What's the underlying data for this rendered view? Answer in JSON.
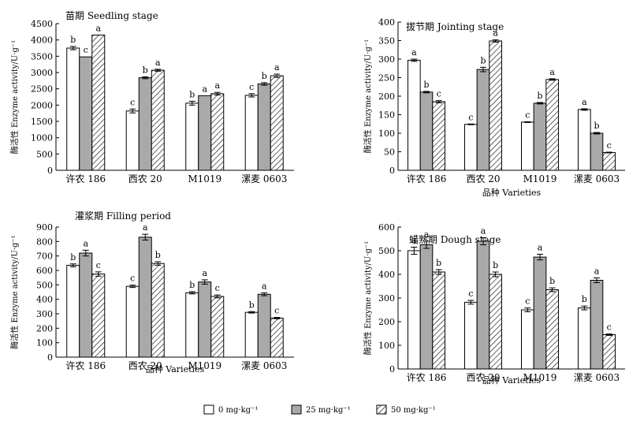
{
  "chart_data": [
    {
      "type": "bar",
      "title": "苗期 Seedling stage",
      "xlabel": "",
      "ylabel": "酶活性 Enzyme activity/U·g⁻¹",
      "ylim": [
        0,
        4500
      ],
      "yticks": [
        0,
        500,
        1000,
        1500,
        2000,
        2500,
        3000,
        3500,
        4000,
        4500
      ],
      "categories": [
        "许农 186",
        "西农 20",
        "M1019",
        "漯麦 0603"
      ],
      "series": [
        {
          "name": "0 mg·kg⁻¹",
          "values": [
            3750,
            1820,
            2060,
            2300
          ],
          "errors": [
            50,
            60,
            60,
            50
          ],
          "letters": [
            "b",
            "c",
            "b",
            "c"
          ]
        },
        {
          "name": "25 mg·kg⁻¹",
          "values": [
            3480,
            2840,
            2290,
            2650
          ],
          "errors": [
            0,
            30,
            0,
            40
          ],
          "letters": [
            "c",
            "b",
            "a",
            "b"
          ]
        },
        {
          "name": "50 mg·kg⁻¹",
          "values": [
            4150,
            3070,
            2350,
            2900
          ],
          "errors": [
            0,
            30,
            40,
            50
          ],
          "letters": [
            "a",
            "a",
            "a",
            "a"
          ]
        }
      ]
    },
    {
      "type": "bar",
      "title": "拔节期 Jointing stage",
      "xlabel": "品种 Varieties",
      "ylabel": "酶活性 Enzyme activity/U·g⁻¹",
      "ylim": [
        0,
        400
      ],
      "yticks": [
        0,
        50,
        100,
        150,
        200,
        250,
        300,
        350,
        400
      ],
      "categories": [
        "许农 186",
        "西农 20",
        "M1019",
        "漯麦 0603"
      ],
      "series": [
        {
          "name": "0 mg·kg⁻¹",
          "values": [
            297,
            124,
            130,
            164
          ],
          "errors": [
            3,
            1,
            1,
            2
          ],
          "letters": [
            "a",
            "c",
            "c",
            "a"
          ]
        },
        {
          "name": "25 mg·kg⁻¹",
          "values": [
            211,
            272,
            181,
            100
          ],
          "errors": [
            2,
            6,
            2,
            2
          ],
          "letters": [
            "b",
            "b",
            "b",
            "b"
          ]
        },
        {
          "name": "50 mg·kg⁻¹",
          "values": [
            185,
            349,
            245,
            48
          ],
          "errors": [
            3,
            3,
            2,
            1
          ],
          "letters": [
            "c",
            "a",
            "a",
            "c"
          ]
        }
      ]
    },
    {
      "type": "bar",
      "title": "灌浆期 Filling period",
      "xlabel": "品种 Varieties",
      "ylabel": "酶活性 Enzyme activity/U·g⁻¹",
      "ylim": [
        0,
        900
      ],
      "yticks": [
        0,
        100,
        200,
        300,
        400,
        500,
        600,
        700,
        800,
        900
      ],
      "categories": [
        "许农 186",
        "西农 20",
        "M1019",
        "漯麦 0603"
      ],
      "series": [
        {
          "name": "0 mg·kg⁻¹",
          "values": [
            635,
            490,
            445,
            310
          ],
          "errors": [
            10,
            8,
            8,
            5
          ],
          "letters": [
            "b",
            "c",
            "b",
            "b"
          ]
        },
        {
          "name": "25 mg·kg⁻¹",
          "values": [
            720,
            830,
            520,
            435
          ],
          "errors": [
            20,
            20,
            15,
            10
          ],
          "letters": [
            "a",
            "a",
            "a",
            "a"
          ]
        },
        {
          "name": "50 mg·kg⁻¹",
          "values": [
            575,
            648,
            420,
            270
          ],
          "errors": [
            15,
            12,
            10,
            5
          ],
          "letters": [
            "c",
            "b",
            "c",
            "c"
          ]
        }
      ]
    },
    {
      "type": "bar",
      "title": "蜡熟期 Dough stage",
      "xlabel": "品种 Varieties",
      "ylabel": "酶活性 Enzyme activity/U·g⁻¹",
      "ylim": [
        0,
        600
      ],
      "yticks": [
        0,
        100,
        200,
        300,
        400,
        500,
        600
      ],
      "categories": [
        "许农 186",
        "西农 20",
        "M1019",
        "漯麦 0603"
      ],
      "series": [
        {
          "name": "0 mg·kg⁻¹",
          "values": [
            500,
            282,
            250,
            258
          ],
          "errors": [
            15,
            8,
            8,
            8
          ],
          "letters": [
            "a",
            "c",
            "c",
            "b"
          ]
        },
        {
          "name": "25 mg·kg⁻¹",
          "values": [
            525,
            540,
            473,
            375
          ],
          "errors": [
            15,
            15,
            12,
            10
          ],
          "letters": [
            "a",
            "a",
            "a",
            "a"
          ]
        },
        {
          "name": "50 mg·kg⁻¹",
          "values": [
            410,
            400,
            335,
            145
          ],
          "errors": [
            10,
            10,
            8,
            3
          ],
          "letters": [
            "b",
            "b",
            "b",
            "c"
          ]
        }
      ]
    }
  ],
  "legend": {
    "items": [
      {
        "label": "0 mg·kg⁻¹",
        "fill": "white"
      },
      {
        "label": "25 mg·kg⁻¹",
        "fill": "gray"
      },
      {
        "label": "50 mg·kg⁻¹",
        "fill": "hatch"
      }
    ]
  },
  "colors": {
    "bar_gray": "#a9a9a9",
    "bar_white": "#ffffff",
    "axis": "#000000"
  }
}
